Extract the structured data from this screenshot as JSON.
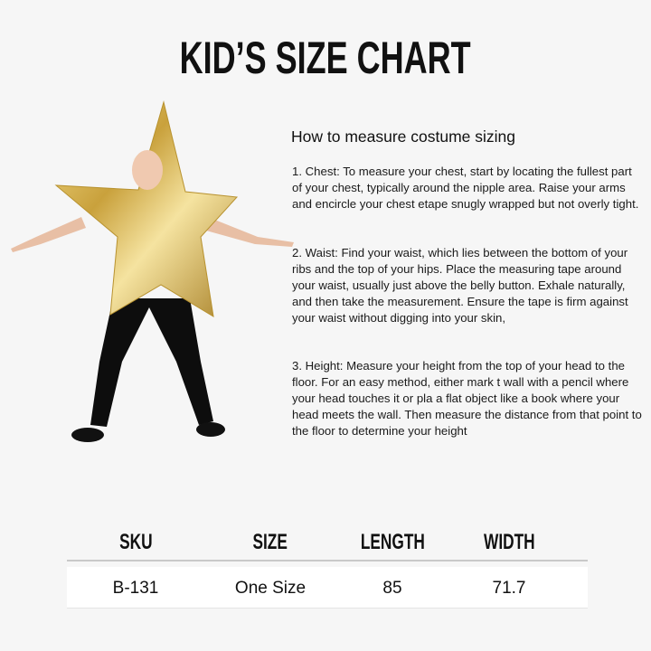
{
  "title": "KID’S SIZE CHART",
  "guide": {
    "heading": "How to measure costume sizing",
    "steps": [
      "1. Chest: To measure your chest, start by locating the fullest part of your chest, typically around the nipple area. Raise your arms and encircle your chest etape snugly wrapped but not overly tight.",
      "2. Waist: Find your waist, which lies between the bottom of your ribs and the top of your hips. Place the measuring tape around your waist, usually just above the belly button. Exhale naturally, and then take the measurement. Ensure the tape is firm against your waist without digging into your skin,",
      "3. Height: Measure your height from the top of your head to the floor. For an easy method, either mark t wall with a pencil where your head touches it or pla a flat object like a book where your head meets the wall. Then measure the distance from that point to the floor to determine your height"
    ]
  },
  "table": {
    "headers": [
      "SKU",
      "SIZE",
      "LENGTH",
      "WIDTH"
    ],
    "rows": [
      [
        "B-131",
        "One Size",
        "85",
        "71.7"
      ]
    ]
  },
  "colors": {
    "background": "#f6f6f6",
    "star_gold": "#d9b54a"
  }
}
